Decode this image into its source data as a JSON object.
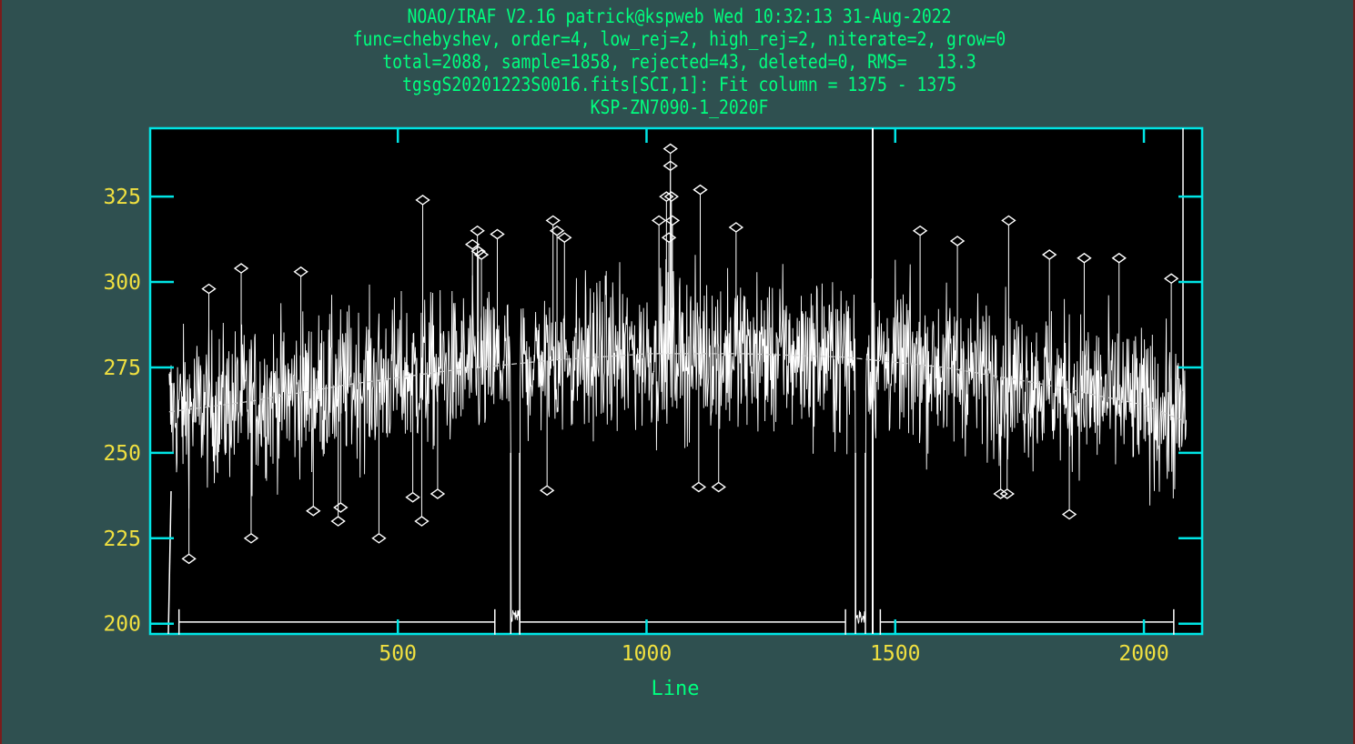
{
  "header": {
    "line1": "NOAO/IRAF V2.16 patrick@kspweb Wed 10:32:13 31-Aug-2022",
    "line2": "func=chebyshev, order=4, low_rej=2, high_rej=2, niterate=2, grow=0",
    "line3": "total=2088, sample=1858, rejected=43, deleted=0, RMS=   13.3",
    "line4": "tgsgS20201223S0016.fits[SCI,1]: Fit column = 1375 - 1375",
    "line5": "KSP-ZN7090-1_2020F"
  },
  "colors": {
    "background": "#2f5050",
    "plot_frame": "#00e5e5",
    "plot_bg": "#000000",
    "data": "#ffffff",
    "tick_labels": "#f0e040",
    "header_text": "#00ff7f"
  },
  "chart_data": {
    "type": "line",
    "xlabel": "Line",
    "xlim": [
      2,
      2117
    ],
    "ylim": [
      197,
      345
    ],
    "xticks": [
      500,
      1000,
      1500,
      2000
    ],
    "yticks": [
      200,
      225,
      250,
      275,
      300,
      325
    ],
    "grid": false,
    "fit": {
      "function": "chebyshev",
      "order": 4,
      "x": [
        40,
        200,
        400,
        600,
        800,
        1000,
        1200,
        1400,
        1600,
        1800,
        2000,
        2088
      ],
      "y": [
        262,
        265,
        270,
        274,
        277,
        279,
        279,
        278,
        275,
        270,
        264,
        259
      ]
    },
    "sample_regions": [
      [
        60,
        695
      ],
      [
        745,
        1400
      ],
      [
        1470,
        2060
      ]
    ],
    "gaps": [
      [
        727,
        745
      ],
      [
        1420,
        1440
      ]
    ],
    "rejected_points": [
      {
        "x": 80,
        "y": 219
      },
      {
        "x": 120,
        "y": 298
      },
      {
        "x": 185,
        "y": 304
      },
      {
        "x": 205,
        "y": 225
      },
      {
        "x": 305,
        "y": 303
      },
      {
        "x": 330,
        "y": 233
      },
      {
        "x": 380,
        "y": 230
      },
      {
        "x": 385,
        "y": 234
      },
      {
        "x": 462,
        "y": 225
      },
      {
        "x": 530,
        "y": 237
      },
      {
        "x": 548,
        "y": 230
      },
      {
        "x": 550,
        "y": 324
      },
      {
        "x": 580,
        "y": 238
      },
      {
        "x": 650,
        "y": 311
      },
      {
        "x": 660,
        "y": 315
      },
      {
        "x": 662,
        "y": 309
      },
      {
        "x": 668,
        "y": 308
      },
      {
        "x": 700,
        "y": 314
      },
      {
        "x": 800,
        "y": 239
      },
      {
        "x": 812,
        "y": 318
      },
      {
        "x": 820,
        "y": 315
      },
      {
        "x": 835,
        "y": 313
      },
      {
        "x": 1025,
        "y": 318
      },
      {
        "x": 1040,
        "y": 325
      },
      {
        "x": 1045,
        "y": 313
      },
      {
        "x": 1048,
        "y": 339
      },
      {
        "x": 1048,
        "y": 334
      },
      {
        "x": 1050,
        "y": 325
      },
      {
        "x": 1052,
        "y": 318
      },
      {
        "x": 1105,
        "y": 240
      },
      {
        "x": 1108,
        "y": 327
      },
      {
        "x": 1145,
        "y": 240
      },
      {
        "x": 1180,
        "y": 316
      },
      {
        "x": 1550,
        "y": 315
      },
      {
        "x": 1625,
        "y": 312
      },
      {
        "x": 1712,
        "y": 238
      },
      {
        "x": 1725,
        "y": 238
      },
      {
        "x": 1728,
        "y": 318
      },
      {
        "x": 1810,
        "y": 308
      },
      {
        "x": 1850,
        "y": 232
      },
      {
        "x": 1880,
        "y": 307
      },
      {
        "x": 1950,
        "y": 307
      },
      {
        "x": 2055,
        "y": 301
      }
    ]
  }
}
